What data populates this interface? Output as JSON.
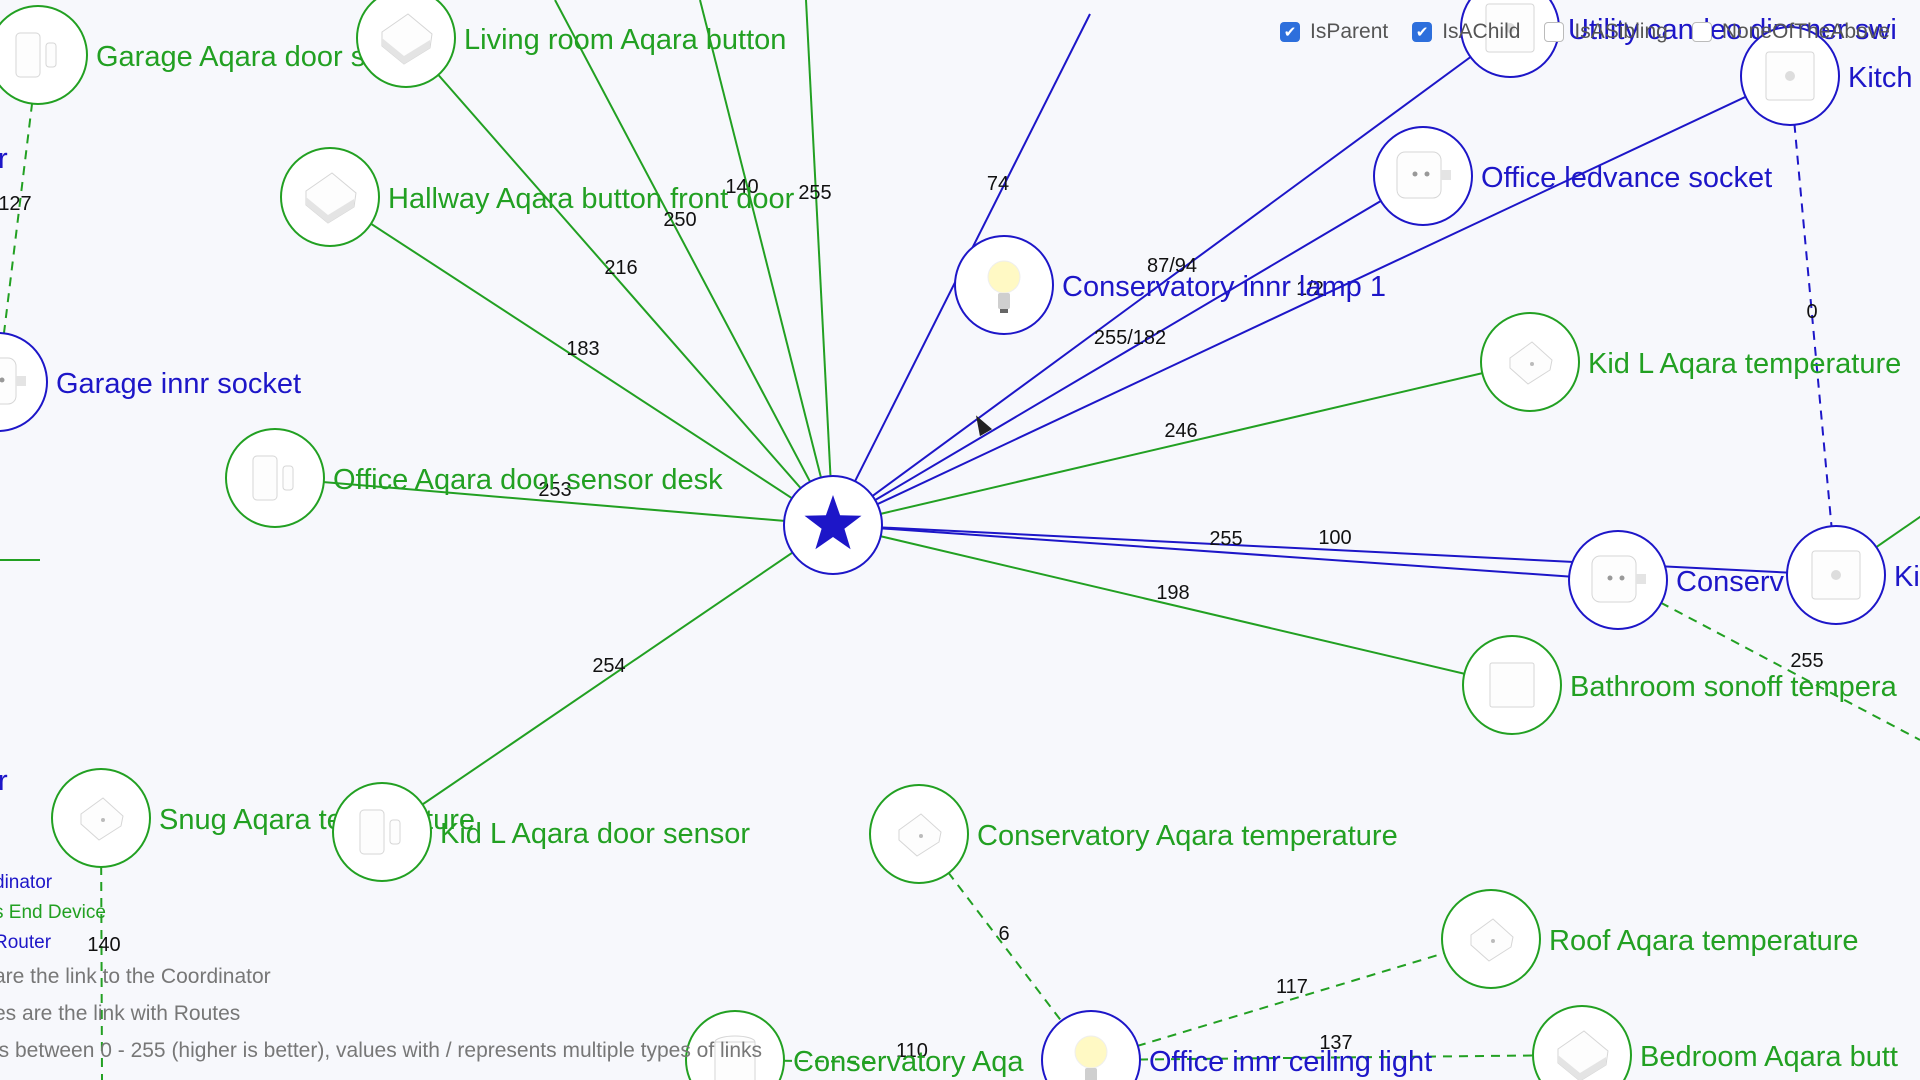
{
  "filters": [
    {
      "label": "IsParent",
      "checked": true
    },
    {
      "label": "IsAChild",
      "checked": true
    },
    {
      "label": "IsASibling",
      "checked": false
    },
    {
      "label": "NoneOfTheAbove",
      "checked": false
    }
  ],
  "nodes": [
    {
      "id": "coordinator",
      "label": "",
      "kind": "coordinator",
      "device": "star"
    },
    {
      "id": "garage-door",
      "label": "Garage Aqara door s",
      "kind": "end",
      "device": "door"
    },
    {
      "id": "living-button",
      "label": "Living room Aqara button",
      "kind": "end",
      "device": "button"
    },
    {
      "id": "hallway-button",
      "label": "Hallway Aqara button front door",
      "kind": "end",
      "device": "button"
    },
    {
      "id": "garage-socket",
      "label": "Garage innr socket",
      "kind": "router",
      "device": "socket"
    },
    {
      "id": "office-door",
      "label": "Office Aqara door sensor desk",
      "kind": "end",
      "device": "door"
    },
    {
      "id": "conservatory-lamp",
      "label": "Conservatory innr lamp 1",
      "kind": "router",
      "device": "bulb"
    },
    {
      "id": "office-socket",
      "label": "Office ledvance socket",
      "kind": "router",
      "device": "socket"
    },
    {
      "id": "utility-dimmer",
      "label": "Utility candeo dimmer swi",
      "kind": "router",
      "device": "switch"
    },
    {
      "id": "kitchen",
      "label": "Kitch",
      "kind": "router",
      "device": "switch"
    },
    {
      "id": "kid-temp",
      "label": "Kid L Aqara temperature",
      "kind": "end",
      "device": "temp"
    },
    {
      "id": "conservatory-socket",
      "label": "Conserv",
      "kind": "router",
      "device": "socket"
    },
    {
      "id": "kitchen-2",
      "label": "Ki",
      "kind": "router",
      "device": "switch"
    },
    {
      "id": "bathroom-temp",
      "label": "Bathroom sonoff tempera",
      "kind": "end",
      "device": "square"
    },
    {
      "id": "snug-temp",
      "label": "Snug Aqara temperature",
      "kind": "end",
      "device": "temp"
    },
    {
      "id": "kid-door",
      "label": "Kid L Aqara door sensor",
      "kind": "end",
      "device": "door"
    },
    {
      "id": "conservatory-temp",
      "label": "Conservatory Aqara temperature",
      "kind": "end",
      "device": "temp"
    },
    {
      "id": "roof-temp",
      "label": "Roof Aqara temperature",
      "kind": "end",
      "device": "temp"
    },
    {
      "id": "office-ceiling",
      "label": "Office innr ceiling light",
      "kind": "router",
      "device": "bulb"
    },
    {
      "id": "bedroom-button",
      "label": "Bedroom Aqara butt",
      "kind": "end",
      "device": "button"
    },
    {
      "id": "conservatory-aqa",
      "label": "Conservatory Aqa",
      "kind": "end",
      "device": "cylinder"
    }
  ],
  "links": [
    {
      "kind": "end",
      "lqi": "216",
      "style": "solid"
    },
    {
      "kind": "end",
      "lqi": "250",
      "style": "solid"
    },
    {
      "kind": "end",
      "lqi": "140",
      "style": "solid"
    },
    {
      "kind": "end",
      "lqi": "255",
      "style": "solid"
    },
    {
      "kind": "end",
      "lqi": "183",
      "style": "solid"
    },
    {
      "kind": "end",
      "lqi": "253",
      "style": "solid"
    },
    {
      "kind": "router",
      "lqi": "74",
      "style": "solid"
    },
    {
      "kind": "router",
      "lqi": "87/94",
      "style": "solid"
    },
    {
      "kind": "router",
      "lqi": "255/182",
      "style": "solid"
    },
    {
      "kind": "router",
      "lqi": "1/2",
      "style": "solid"
    },
    {
      "kind": "end",
      "lqi": "246",
      "style": "solid"
    },
    {
      "kind": "router",
      "lqi": "255",
      "style": "solid"
    },
    {
      "kind": "router",
      "lqi": "100",
      "style": "solid"
    },
    {
      "kind": "end",
      "lqi": "198",
      "style": "solid"
    },
    {
      "kind": "end",
      "lqi": "254",
      "style": "solid"
    },
    {
      "kind": "end",
      "lqi": "127",
      "style": "dashed"
    },
    {
      "kind": "router",
      "lqi": "0",
      "style": "dashed"
    },
    {
      "kind": "end",
      "lqi": "255",
      "style": "dashed"
    },
    {
      "kind": "end",
      "lqi": "6",
      "style": "dashed"
    },
    {
      "kind": "end",
      "lqi": "117",
      "style": "dashed"
    },
    {
      "kind": "end",
      "lqi": "137",
      "style": "dashed"
    },
    {
      "kind": "end",
      "lqi": "110",
      "style": "dashed"
    },
    {
      "kind": "end",
      "lqi": "140",
      "style": "dashed"
    },
    {
      "kind": "end",
      "lqi": "",
      "style": "solid"
    },
    {
      "kind": "end",
      "lqi": "",
      "style": "solid"
    }
  ],
  "legend": {
    "coordinator": "dinator",
    "end_device": "s End Device",
    "router": "Router",
    "note_solid": "are the link to the Coordinator",
    "note_dashed": "es are the link with Routes",
    "note_lqi": " is between 0 - 255 (higher is better), values with / represents multiple types of links"
  },
  "edge_labels": {
    "garage_socket_partial": "r",
    "left_mid_partial": "r"
  },
  "colors": {
    "end_device": "#22a022",
    "router": "#1d16c8",
    "coordinator": "#1d16c8",
    "background": "#f7f8fc"
  }
}
